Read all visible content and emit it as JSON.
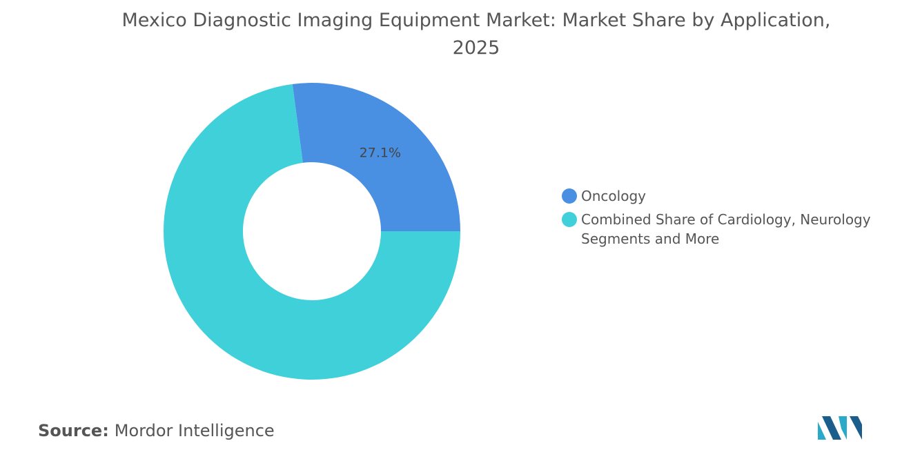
{
  "chart_data": {
    "type": "donut",
    "title": "Mexico Diagnostic Imaging Equipment Market: Market Share by Application, 2025",
    "categories": [
      "Oncology",
      "Combined Share of Cardiology, Neurology Segments and More"
    ],
    "values": [
      27.1,
      72.9
    ],
    "value_labels": [
      "27.1%",
      null
    ],
    "colors": [
      "#4a90e2",
      "#40d0da"
    ],
    "legend": "right"
  },
  "footer": {
    "source_label": "Source:",
    "source": "Mordor Intelligence"
  }
}
